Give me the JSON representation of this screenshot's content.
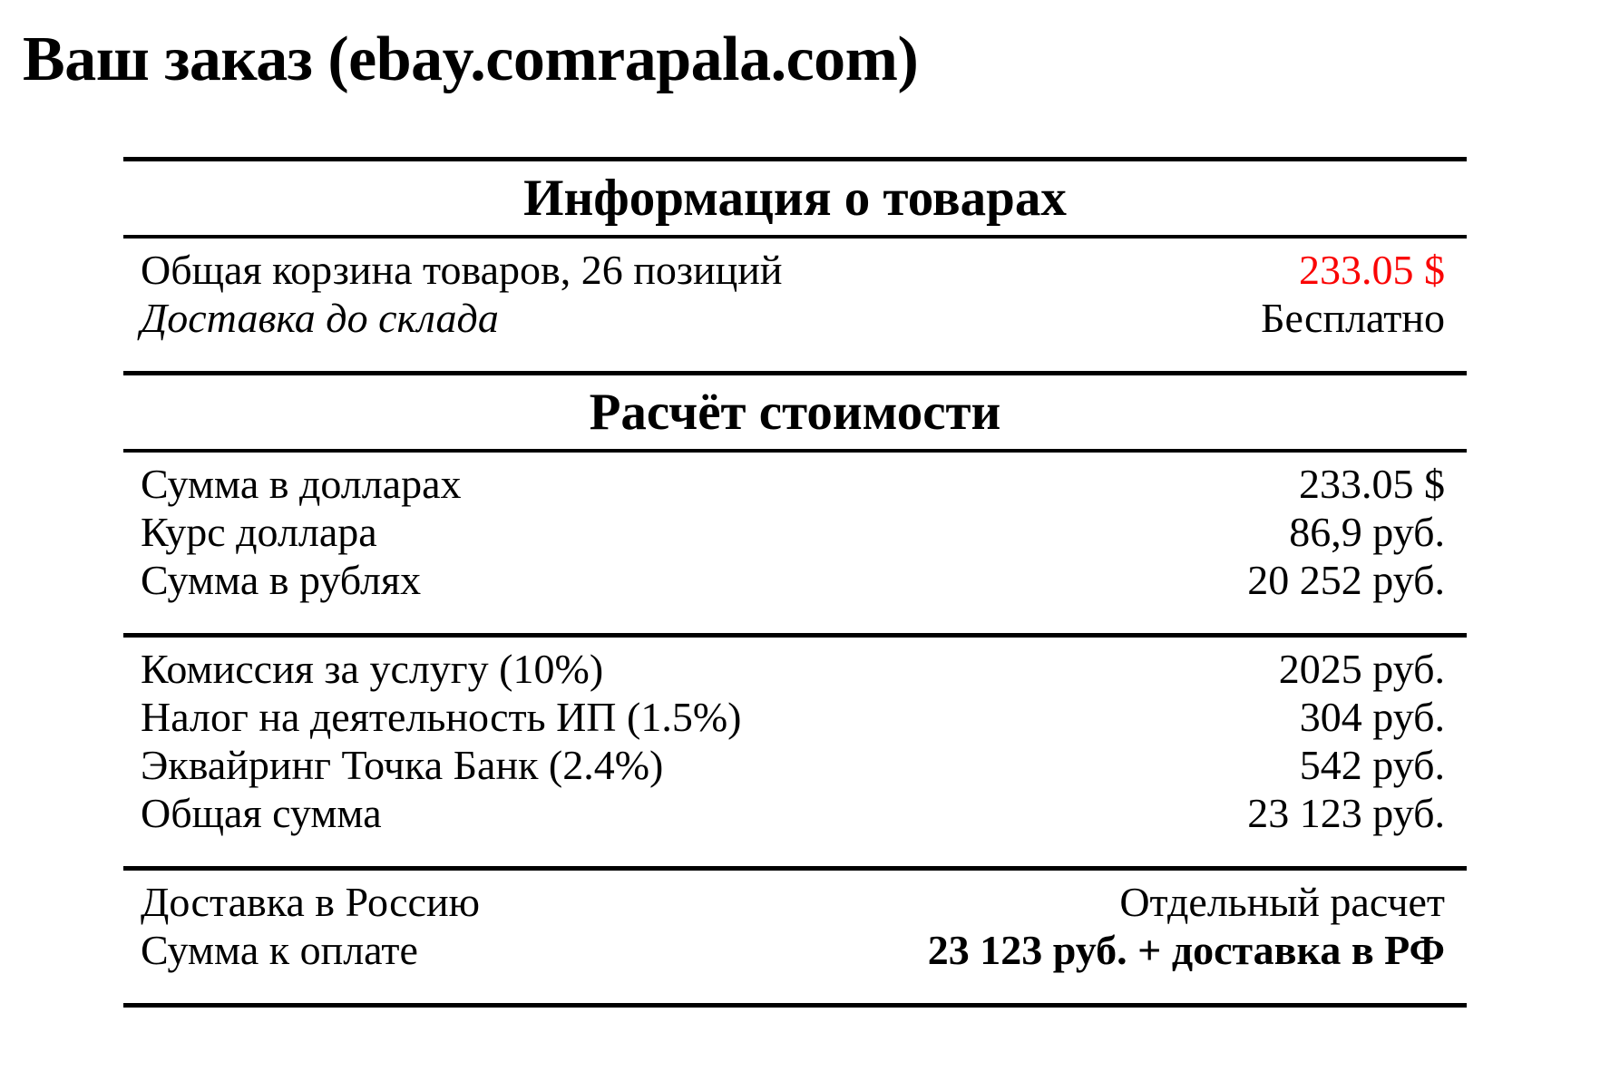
{
  "page": {
    "title": "Ваш заказ (ebay.comrapala.com)"
  },
  "colors": {
    "background": "#ffffff",
    "text": "#000000",
    "rule": "#000000",
    "highlight_red": "#fa0505"
  },
  "table": {
    "sections": [
      {
        "header": "Информация о товарах",
        "rows": [
          {
            "label": "Общая корзина товаров, 26 позиций",
            "value": "233.05 $",
            "value_color": "red"
          },
          {
            "label": "Доставка до склада",
            "label_style": "italic",
            "value": "Бесплатно"
          }
        ]
      },
      {
        "header": "Расчёт стоимости",
        "rows": [
          {
            "label": "Сумма в долларах",
            "value": "233.05 $"
          },
          {
            "label": "Курс доллара",
            "value": "86,9 руб."
          },
          {
            "label": "Сумма в рублях",
            "value": "20 252 руб."
          }
        ]
      },
      {
        "rows": [
          {
            "label": "Комиссия за услугу (10%)",
            "value": "2025 руб."
          },
          {
            "label": "Налог на деятельность ИП (1.5%)",
            "value": "304 руб."
          },
          {
            "label": "Эквайринг Точка Банк (2.4%)",
            "value": "542 руб."
          },
          {
            "label": "Общая сумма",
            "value": "23 123 руб."
          }
        ]
      },
      {
        "rows": [
          {
            "label": "Доставка в Россию",
            "value": "Отдельный расчет"
          },
          {
            "label": "Сумма к оплате",
            "value": "23 123 руб. + доставка в РФ",
            "value_style": "bold"
          }
        ]
      }
    ]
  }
}
